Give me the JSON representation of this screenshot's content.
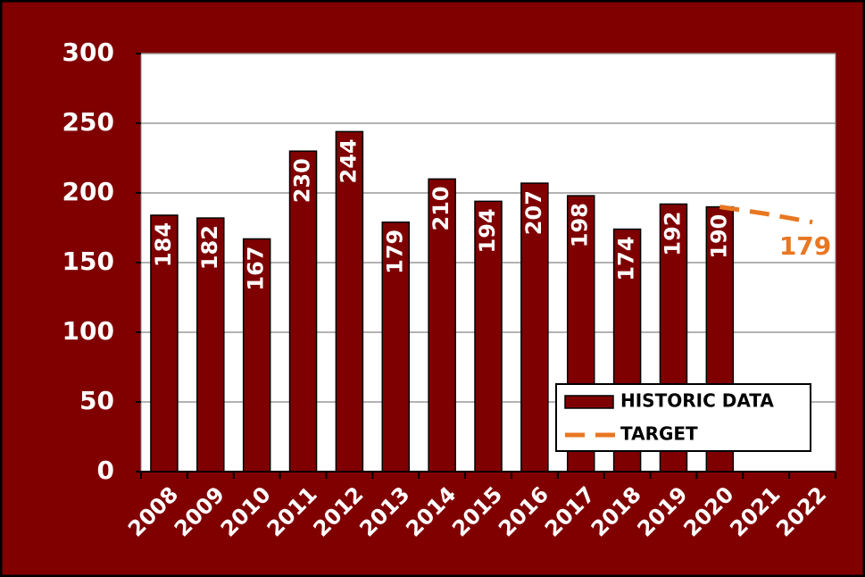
{
  "chart_data": {
    "type": "bar",
    "categories": [
      "2008",
      "2009",
      "2010",
      "2011",
      "2012",
      "2013",
      "2014",
      "2015",
      "2016",
      "2017",
      "2018",
      "2019",
      "2020",
      "2021",
      "2022"
    ],
    "series": [
      {
        "name": "HISTORIC DATA",
        "type": "bar",
        "color": "#7f0000",
        "values": [
          184,
          182,
          167,
          230,
          244,
          179,
          210,
          194,
          207,
          198,
          174,
          192,
          190,
          null,
          null
        ]
      },
      {
        "name": "TARGET",
        "type": "line",
        "color": "#e87722",
        "values": [
          null,
          null,
          null,
          null,
          null,
          null,
          null,
          null,
          null,
          null,
          null,
          null,
          190,
          185,
          179
        ]
      }
    ],
    "ylim": [
      0,
      300
    ],
    "yticks": [
      0,
      50,
      100,
      150,
      200,
      250,
      300
    ],
    "grid": true,
    "legend": "lower right"
  }
}
